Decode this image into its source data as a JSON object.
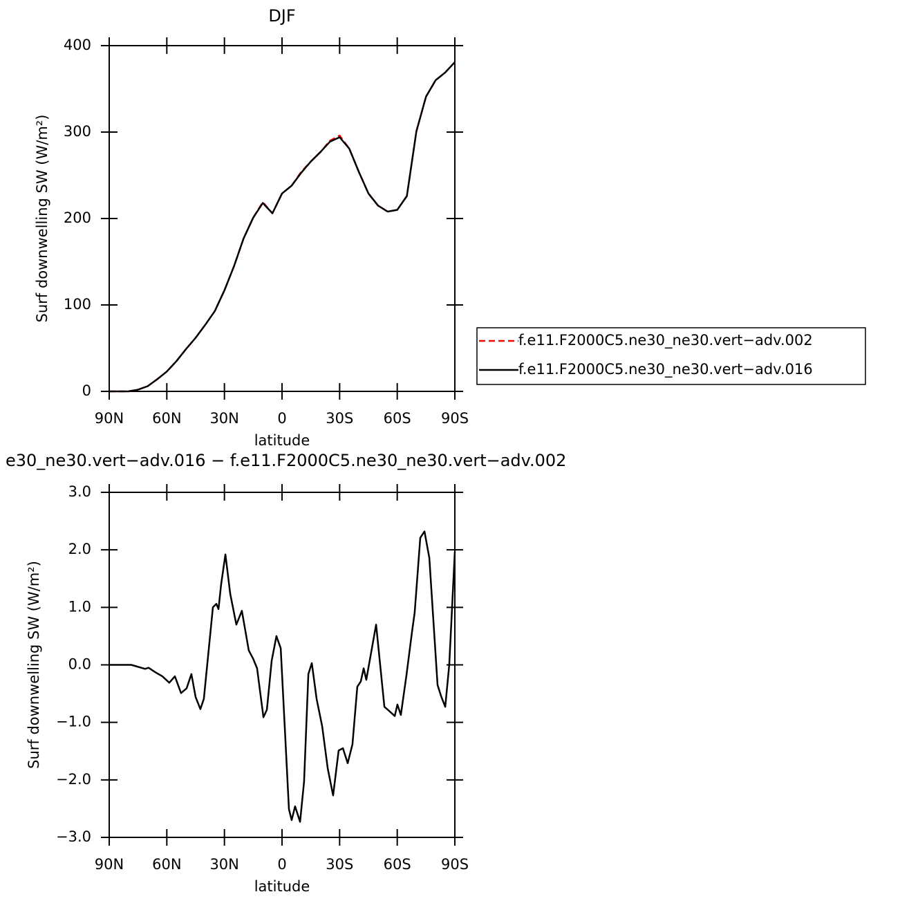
{
  "chart_data": [
    {
      "type": "line",
      "title": "DJF",
      "x_label": "latitude",
      "y_label": "Surf downwelling SW (W/m²)",
      "x": [
        90,
        85,
        80,
        75,
        70,
        65,
        60,
        55,
        50,
        45,
        40,
        35,
        30,
        25,
        20,
        15,
        10,
        5,
        0,
        -5,
        -10,
        -15,
        -20,
        -25,
        -30,
        -35,
        -40,
        -45,
        -50,
        -55,
        -60,
        -65,
        -70,
        -75,
        -80,
        -85,
        -90
      ],
      "series": [
        {
          "name": "f.e11.F2000C5.ne30_ne30.vert−adv.002",
          "color": "#ff0000",
          "line_style": "dashed",
          "values": [
            0,
            0,
            0,
            2,
            6,
            14,
            23,
            35,
            49,
            62,
            77,
            93,
            117,
            145,
            177,
            201,
            219,
            206,
            229,
            238,
            254,
            266,
            277,
            290,
            296,
            281,
            254,
            229,
            215,
            208,
            210,
            226,
            301,
            341,
            360,
            369,
            381
          ]
        },
        {
          "name": "f.e11.F2000C5.ne30_ne30.vert−adv.016",
          "color": "#000000",
          "line_style": "solid",
          "values": [
            0,
            0,
            0,
            2,
            6,
            14,
            23,
            35,
            49,
            62,
            77,
            93,
            117,
            145,
            177,
            201,
            218,
            206,
            229,
            238,
            253,
            266,
            277,
            289,
            294,
            281,
            254,
            229,
            215,
            208,
            210,
            226,
            301,
            341,
            360,
            369,
            381
          ]
        }
      ],
      "xlim": [
        90,
        -90
      ],
      "xticks": [
        {
          "value": 90,
          "label": "90N"
        },
        {
          "value": 60,
          "label": "60N"
        },
        {
          "value": 30,
          "label": "30N"
        },
        0,
        {
          "value": -30,
          "label": "30S"
        },
        {
          "value": -60,
          "label": "60S"
        },
        {
          "value": -90,
          "label": "90S"
        }
      ],
      "ylim": [
        0,
        400
      ],
      "yticks": [
        0,
        100,
        200,
        300,
        400
      ],
      "legend": "right"
    },
    {
      "type": "line",
      "title": "e30_ne30.vert−adv.016 − f.e11.F2000C5.ne30_ne30.vert−adv.002",
      "x_label": "latitude",
      "y_label": "Surf downwelling SW (W/m²)",
      "x": [
        90,
        78.5,
        71.3,
        69.5,
        65.9,
        62.3,
        58.7,
        55.8,
        52.6,
        49.7,
        47.2,
        45,
        42.5,
        40.7,
        36,
        34.2,
        33.1,
        31.7,
        29.5,
        27,
        23.8,
        20.9,
        17.3,
        15.1,
        13,
        9.7,
        7.9,
        5.4,
        2.9,
        0.7,
        -1.4,
        -3.6,
        -5,
        -6.8,
        -9.4,
        -11.5,
        -13.7,
        -15.5,
        -18,
        -20.9,
        -23.8,
        -26.6,
        -29.5,
        -31.7,
        -34.2,
        -36.7,
        -39.2,
        -41,
        -42.5,
        -43.9,
        -49,
        -53.3,
        -55.4,
        -58.7,
        -60.1,
        -61.9,
        -64.8,
        -67.7,
        -69.1,
        -72,
        -74.2,
        -76.7,
        -81,
        -82.8,
        -85,
        -87.1,
        -90
      ],
      "values": [
        0,
        0,
        -0.07,
        -0.05,
        -0.13,
        -0.2,
        -0.31,
        -0.2,
        -0.49,
        -0.41,
        -0.16,
        -0.56,
        -0.77,
        -0.59,
        1.0,
        1.06,
        0.97,
        1.4,
        1.92,
        1.24,
        0.7,
        0.94,
        0.25,
        0.11,
        -0.06,
        -0.91,
        -0.78,
        0.07,
        0.5,
        0.29,
        -1.07,
        -2.51,
        -2.7,
        -2.46,
        -2.73,
        -2.03,
        -0.16,
        0.03,
        -0.59,
        -1.07,
        -1.8,
        -2.27,
        -1.49,
        -1.45,
        -1.71,
        -1.38,
        -0.38,
        -0.29,
        -0.06,
        -0.26,
        0.7,
        -0.73,
        -0.79,
        -0.89,
        -0.69,
        -0.87,
        -0.18,
        0.58,
        0.91,
        2.21,
        2.32,
        1.86,
        -0.35,
        -0.54,
        -0.73,
        0,
        1.97
      ],
      "color": "#000000",
      "xlim": [
        90,
        -90
      ],
      "xticks": [
        {
          "value": 90,
          "label": "90N"
        },
        {
          "value": 60,
          "label": "60N"
        },
        {
          "value": 30,
          "label": "30N"
        },
        0,
        {
          "value": -30,
          "label": "30S"
        },
        {
          "value": -60,
          "label": "60S"
        },
        {
          "value": -90,
          "label": "90S"
        }
      ],
      "ylim": [
        -3,
        3
      ],
      "yticks": [
        {
          "value": -3,
          "label": "−3.0"
        },
        {
          "value": -2,
          "label": "−2.0"
        },
        {
          "value": -1,
          "label": "−1.0"
        },
        {
          "value": 0,
          "label": "0.0"
        },
        {
          "value": 1,
          "label": "1.0"
        },
        {
          "value": 2,
          "label": "2.0"
        },
        {
          "value": 3,
          "label": "3.0"
        }
      ]
    }
  ]
}
